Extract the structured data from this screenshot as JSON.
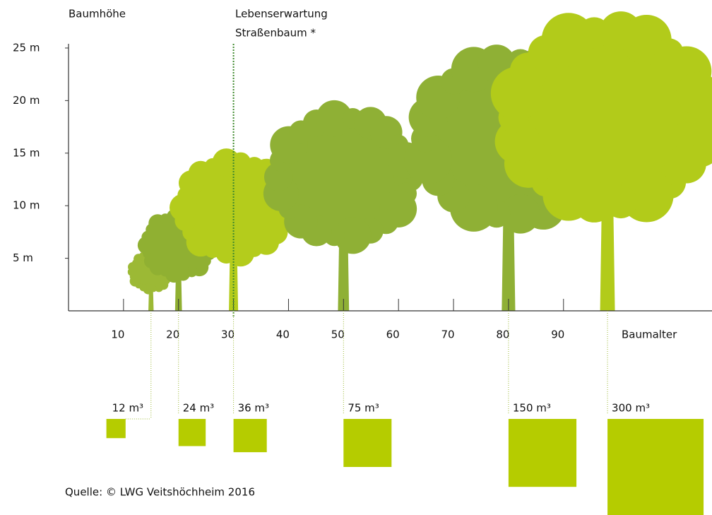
{
  "chart_data": {
    "type": "tree-growth",
    "y_label": "Baumhöhe",
    "x_label": "Baumalter",
    "annotation": [
      "Lebenserwartung",
      "Straßenbaum *"
    ],
    "annotation_x": 30,
    "source": "Quelle: © LWG Veitshöchheim 2016",
    "xlim": [
      0,
      117
    ],
    "ylim": [
      0,
      25.4
    ],
    "xticks": [
      10,
      20,
      30,
      40,
      50,
      60,
      70,
      80,
      90
    ],
    "yticks": [
      {
        "value": 5,
        "label": "5 m"
      },
      {
        "value": 10,
        "label": "10 m"
      },
      {
        "value": 15,
        "label": "15 m"
      },
      {
        "value": 20,
        "label": "20 m"
      },
      {
        "value": 25,
        "label": "25 m"
      }
    ],
    "ages": [
      15,
      20,
      30,
      50,
      80,
      98
    ],
    "heights": [
      5.7,
      9.6,
      15.1,
      19.6,
      25.2,
      28.3
    ],
    "tree_colors": [
      "#9cb935",
      "#90b032",
      "#b4cc1c",
      "#8fb035",
      "#8fb035",
      "#b2cb1a"
    ],
    "volumes": [
      12,
      24,
      36,
      75,
      150,
      300
    ],
    "value_labels": [
      "12 m³",
      "24 m³",
      "36 m³",
      "75 m³",
      "150 m³",
      "300 m³"
    ],
    "volume_color": "#b5cc00"
  }
}
